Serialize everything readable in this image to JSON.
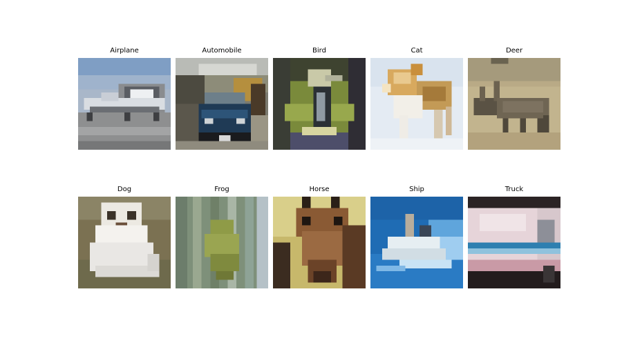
{
  "figure": {
    "panels": [
      {
        "label": "Airplane",
        "subject": "airplane"
      },
      {
        "label": "Automobile",
        "subject": "automobile"
      },
      {
        "label": "Bird",
        "subject": "bird"
      },
      {
        "label": "Cat",
        "subject": "cat"
      },
      {
        "label": "Deer",
        "subject": "deer"
      },
      {
        "label": "Dog",
        "subject": "dog"
      },
      {
        "label": "Frog",
        "subject": "frog"
      },
      {
        "label": "Horse",
        "subject": "horse"
      },
      {
        "label": "Ship",
        "subject": "ship"
      },
      {
        "label": "Truck",
        "subject": "truck"
      }
    ]
  }
}
